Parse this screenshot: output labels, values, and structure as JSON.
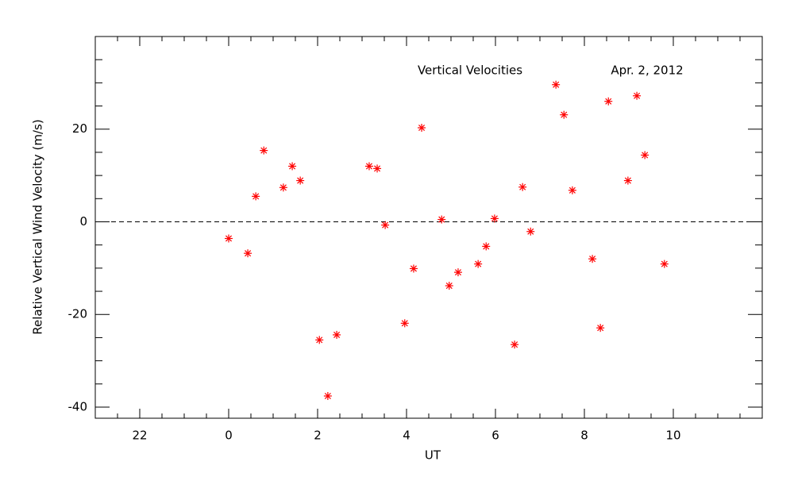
{
  "chart_data": {
    "type": "scatter",
    "x_label": "UT",
    "y_label": "Relative Vertical Wind Velocity (m/s)",
    "annotations": [
      "Vertical Velocities",
      "Apr. 2, 2012"
    ],
    "x": [
      0.0,
      0.43,
      0.61,
      0.79,
      1.23,
      1.43,
      1.61,
      2.04,
      2.23,
      2.43,
      3.16,
      3.34,
      3.52,
      3.96,
      4.16,
      4.34,
      4.79,
      4.96,
      5.16,
      5.61,
      5.79,
      5.98,
      6.43,
      6.61,
      6.79,
      7.36,
      7.54,
      7.73,
      8.18,
      8.36,
      8.54,
      8.98,
      9.18,
      9.36,
      9.8
    ],
    "values": [
      -3.6,
      -6.8,
      5.5,
      15.4,
      7.4,
      12.0,
      8.9,
      -25.5,
      -37.6,
      -24.4,
      12.0,
      11.5,
      -0.7,
      -21.9,
      -10.1,
      20.3,
      0.5,
      -13.8,
      -10.9,
      -9.1,
      -5.3,
      0.7,
      -26.5,
      7.5,
      -2.1,
      29.6,
      23.1,
      6.8,
      -8.0,
      -22.9,
      26.0,
      8.9,
      27.2,
      14.4,
      -9.1
    ],
    "color": "#ff0000",
    "marker": "asterisk",
    "xlim": [
      -3,
      12
    ],
    "ylim": [
      -42.4,
      40
    ],
    "xticks": [
      {
        "value": -2,
        "label": "22"
      },
      0,
      2,
      4,
      6,
      8,
      10
    ],
    "yticks": [
      -40,
      -20,
      0,
      20
    ],
    "minor_ticks": true,
    "reference_line": 0
  }
}
